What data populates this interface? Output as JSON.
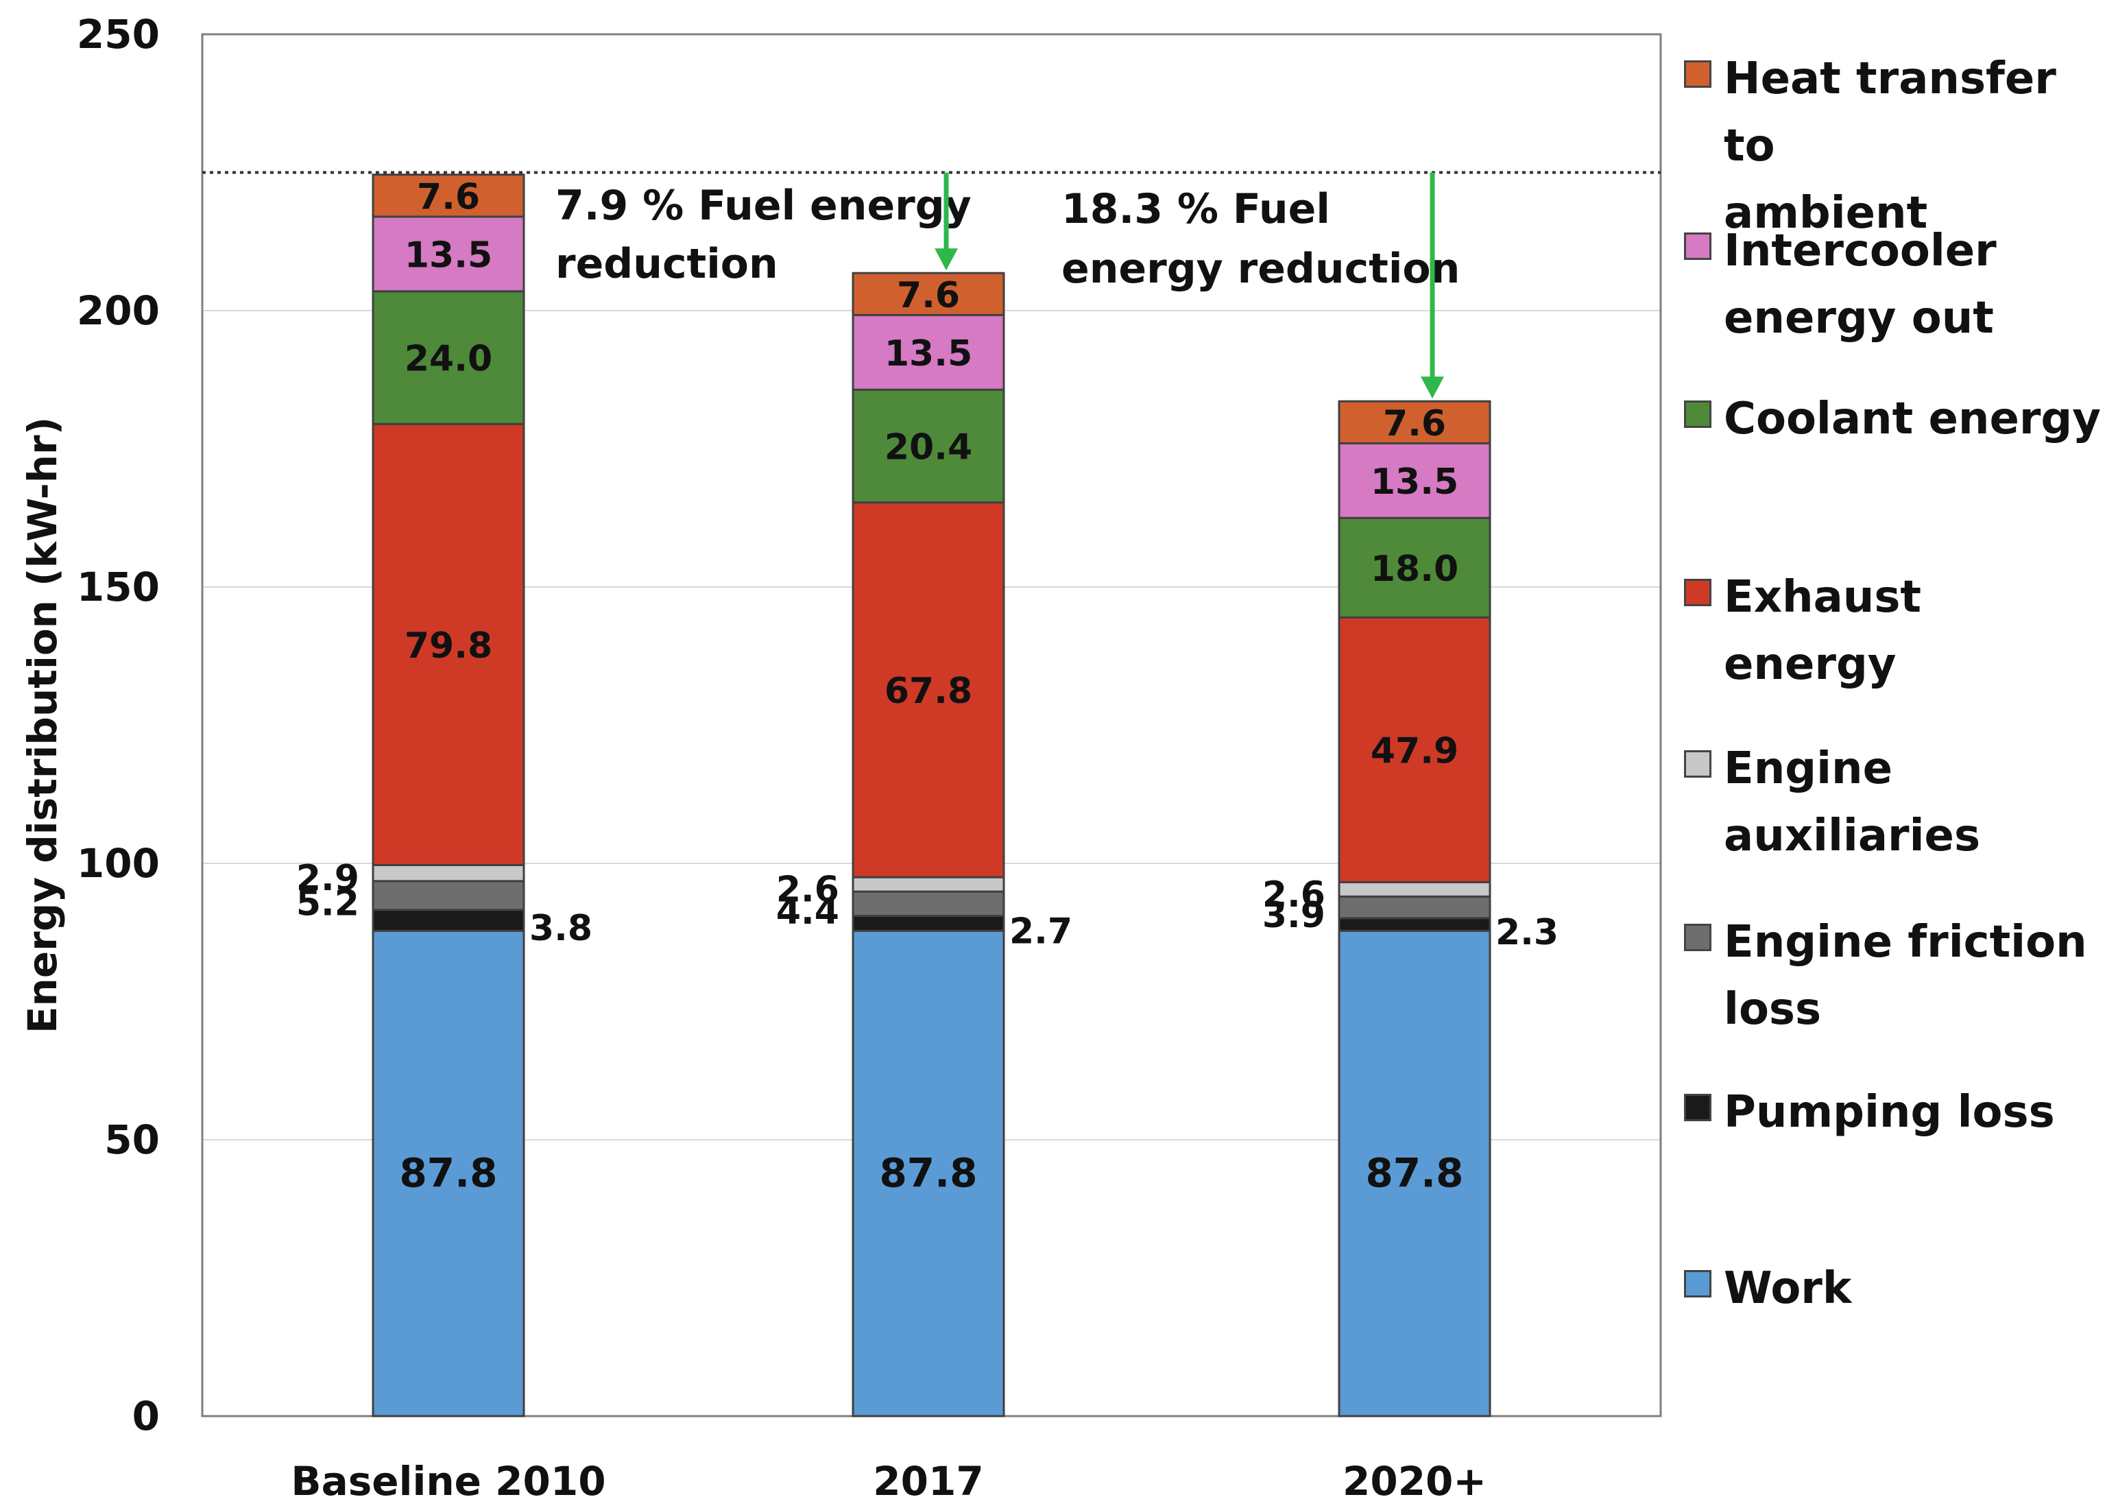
{
  "chart_data": {
    "type": "bar",
    "stacked": true,
    "categories": [
      "Baseline 2010",
      "2017",
      "2020+"
    ],
    "ylabel": "Energy distribution (kW-hr)",
    "xlabel": "",
    "ylim": [
      0,
      250
    ],
    "yticks": [
      0,
      50,
      100,
      150,
      200,
      250
    ],
    "grid": true,
    "reference_line": 225,
    "series": [
      {
        "name": "Work",
        "color": "#5B9BD5",
        "values": [
          87.8,
          87.8,
          87.8
        ],
        "labels": [
          "87.8",
          "87.8",
          "87.8"
        ]
      },
      {
        "name": "Pumping loss",
        "color": "#1A1A1A",
        "values": [
          3.8,
          2.7,
          2.3
        ],
        "labels": [
          "3.8",
          "2.7",
          "2.3"
        ]
      },
      {
        "name": "Engine friction loss",
        "color": "#6E6E6E",
        "values": [
          5.2,
          4.4,
          3.9
        ],
        "labels": [
          "5.2",
          "4.4",
          "3.9"
        ]
      },
      {
        "name": "Engine auxiliaries",
        "color": "#C8C8C8",
        "values": [
          2.9,
          2.6,
          2.6
        ],
        "labels": [
          "2.9",
          "2.6",
          "2.6"
        ]
      },
      {
        "name": "Exhaust energy",
        "color": "#CF3A27",
        "values": [
          79.8,
          67.8,
          47.9
        ],
        "labels": [
          "79.8",
          "67.8",
          "47.9"
        ]
      },
      {
        "name": "Coolant energy",
        "color": "#4E8A3A",
        "values": [
          24.0,
          20.4,
          18.0
        ],
        "labels": [
          "24.0",
          "20.4",
          "18.0"
        ]
      },
      {
        "name": "Intercooler energy out",
        "color": "#D57AC3",
        "values": [
          13.5,
          13.5,
          13.5
        ],
        "labels": [
          "13.5",
          "13.5",
          "13.5"
        ]
      },
      {
        "name": "Heat transfer to ambient",
        "color": "#D0612E",
        "values": [
          7.6,
          7.6,
          7.6
        ],
        "labels": [
          "7.6",
          "7.6",
          "7.6"
        ]
      }
    ],
    "legend": {
      "position": "right",
      "items": [
        {
          "lines": [
            "Heat transfer to",
            "ambient"
          ],
          "color": "#D0612E"
        },
        {
          "lines": [
            "Intercooler",
            "energy out"
          ],
          "color": "#D57AC3"
        },
        {
          "lines": [
            "Coolant energy"
          ],
          "color": "#4E8A3A"
        },
        {
          "lines": [
            "Exhaust energy"
          ],
          "color": "#CF3A27"
        },
        {
          "lines": [
            "Engine",
            "auxiliaries"
          ],
          "color": "#C8C8C8"
        },
        {
          "lines": [
            "Engine friction",
            "loss"
          ],
          "color": "#6E6E6E"
        },
        {
          "lines": [
            "Pumping loss"
          ],
          "color": "#1A1A1A"
        },
        {
          "lines": [
            "Work"
          ],
          "color": "#5B9BD5"
        }
      ]
    },
    "annotations": [
      {
        "lines": [
          "7.9 % Fuel energy",
          "reduction"
        ],
        "arrow_to_category": "2017",
        "arrow_color": "#2DB84B"
      },
      {
        "lines": [
          "18.3 % Fuel",
          "energy reduction"
        ],
        "arrow_to_category": "2020+",
        "arrow_color": "#2DB84B"
      }
    ]
  }
}
